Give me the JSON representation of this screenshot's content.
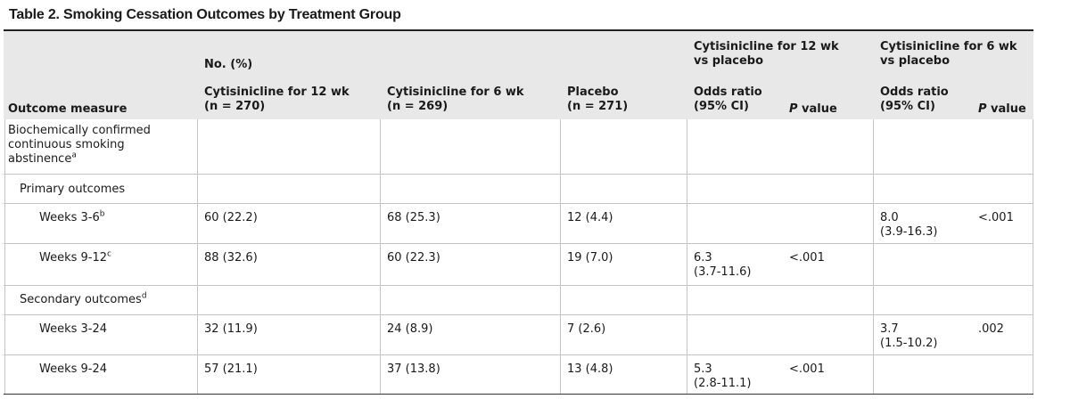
{
  "table": {
    "title": "Table 2. Smoking Cessation Outcomes by Treatment Group",
    "headers": {
      "group_no_pct": "No. (%)",
      "cmp12_line1": "Cytisinicline for 12 wk",
      "cmp12_line2": "vs placebo",
      "cmp6_line1": "Cytisinicline for 6 wk",
      "cmp6_line2": "vs placebo",
      "outcome_measure": "Outcome measure",
      "cyt12_line1": "Cytisinicline for 12 wk",
      "cyt12_line2": "(n = 270)",
      "cyt6_line1": "Cytisinicline for 6 wk",
      "cyt6_line2": "(n = 269)",
      "placebo_line1": "Placebo",
      "placebo_line2": "(n = 271)",
      "or_line1": "Odds ratio",
      "or_line2": "(95% CI)",
      "p_prefix": "P",
      "p_suffix": " value"
    },
    "sections": {
      "main_line1": "Biochemically confirmed",
      "main_line2": "continuous smoking",
      "main_line3": "abstinence",
      "main_sup": "a",
      "primary": "Primary outcomes",
      "secondary": "Secondary outcomes",
      "secondary_sup": "d"
    },
    "rows": [
      {
        "label": "Weeks 3-6",
        "sup": "b",
        "cyt12": "60 (22.2)",
        "cyt6": "68 (25.3)",
        "placebo": "12 (4.4)",
        "or12_1": "",
        "or12_2": "",
        "p12": "",
        "or6_1": "8.0",
        "or6_2": "(3.9-16.3)",
        "p6": "<.001"
      },
      {
        "label": "Weeks 9-12",
        "sup": "c",
        "cyt12": "88 (32.6)",
        "cyt6": "60 (22.3)",
        "placebo": "19 (7.0)",
        "or12_1": "6.3",
        "or12_2": "(3.7-11.6)",
        "p12": "<.001",
        "or6_1": "",
        "or6_2": "",
        "p6": ""
      },
      {
        "label": "Weeks 3-24",
        "sup": "",
        "cyt12": "32 (11.9)",
        "cyt6": "24 (8.9)",
        "placebo": "7 (2.6)",
        "or12_1": "",
        "or12_2": "",
        "p12": "",
        "or6_1": "3.7",
        "or6_2": "(1.5-10.2)",
        "p6": ".002"
      },
      {
        "label": "Weeks 9-24",
        "sup": "",
        "cyt12": "57 (21.1)",
        "cyt6": "37 (13.8)",
        "placebo": "13 (4.8)",
        "or12_1": "5.3",
        "or12_2": "(2.8-11.1)",
        "p12": "<.001",
        "or6_1": "",
        "or6_2": "",
        "p6": ""
      }
    ]
  }
}
